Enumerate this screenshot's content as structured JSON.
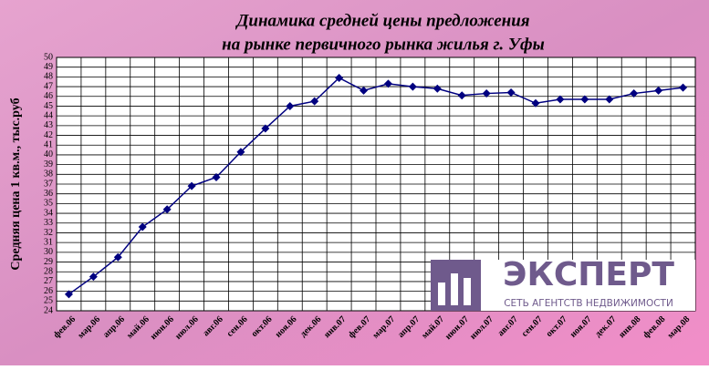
{
  "chart_data": {
    "type": "line",
    "title": "Динамика средней цены предложения",
    "subtitle": "на рынке первичного рынка жилья г. Уфы",
    "y_label": "Средняя цена 1 кв.м., тыс.руб",
    "categories": [
      "фев.06",
      "мар.06",
      "апр.06",
      "май.06",
      "июн.06",
      "июл.06",
      "авг.06",
      "сен.06",
      "окт.06",
      "ноя.06",
      "дек.06",
      "янв.07",
      "фев.07",
      "мар.07",
      "апр.07",
      "май.07",
      "июн.07",
      "июл.07",
      "авг.07",
      "сен.07",
      "окт.07",
      "ноя.07",
      "дек.07",
      "янв.08",
      "фев.08",
      "мар.08"
    ],
    "series": [
      {
        "name": "Средняя цена",
        "color": "#000080",
        "values": [
          25.7,
          27.5,
          29.5,
          32.6,
          34.4,
          36.8,
          37.7,
          40.3,
          42.7,
          45.0,
          45.5,
          47.9,
          46.6,
          47.3,
          47.0,
          46.8,
          46.1,
          46.3,
          46.4,
          45.3,
          45.7,
          45.7,
          45.7,
          46.3,
          46.6,
          46.9
        ]
      }
    ],
    "ylim": [
      24,
      50
    ],
    "yticks": [
      24,
      25,
      26,
      27,
      28,
      29,
      30,
      31,
      32,
      33,
      34,
      35,
      36,
      37,
      38,
      39,
      40,
      41,
      42,
      43,
      44,
      45,
      46,
      47,
      48,
      49,
      50
    ],
    "grid": true
  },
  "logo": {
    "name": "ЭКСПЕРТ",
    "tagline": "СЕТЬ АГЕНТСТВ НЕДВИЖИМОСТИ"
  }
}
